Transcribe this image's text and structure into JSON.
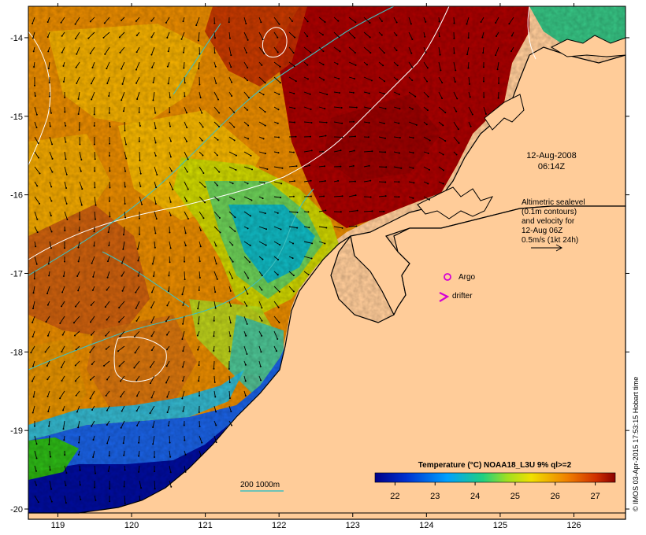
{
  "map": {
    "x_axis": {
      "ticks": [
        "119",
        "120",
        "121",
        "122",
        "123",
        "124",
        "125",
        "126"
      ]
    },
    "y_axis": {
      "ticks": [
        "-14",
        "-15",
        "-16",
        "-17",
        "-18",
        "-19",
        "-20"
      ]
    },
    "lon_range": [
      118.6,
      126.7
    ],
    "lat_range": [
      -13.6,
      -20.05
    ]
  },
  "annotations": {
    "date": "12-Aug-2008",
    "time": "06:14Z",
    "info_lines": [
      "Altimetric sealevel",
      "(0.1m contours)",
      "and velocity for",
      "12-Aug 06Z",
      "0.5m/s (1kt 24h)"
    ]
  },
  "markers": {
    "argo_label": "Argo",
    "drifter_label": "drifter",
    "argo_color": "#d400d4"
  },
  "depth_legend": {
    "label": "200  1000m",
    "color": "#3fbfbf"
  },
  "colorbar": {
    "title": "Temperature (°C) NOAA18_L3U 9% ql>=2",
    "range": [
      21.5,
      27.5
    ],
    "ticks": [
      "22",
      "23",
      "24",
      "25",
      "26",
      "27"
    ]
  },
  "credit": "© IMOS 03-Apr-2015 17:53:15 Hobart time",
  "colors": {
    "land": "#ffcc99",
    "warm": "#a50000",
    "cool": "#00008a",
    "coast": "#000000"
  }
}
